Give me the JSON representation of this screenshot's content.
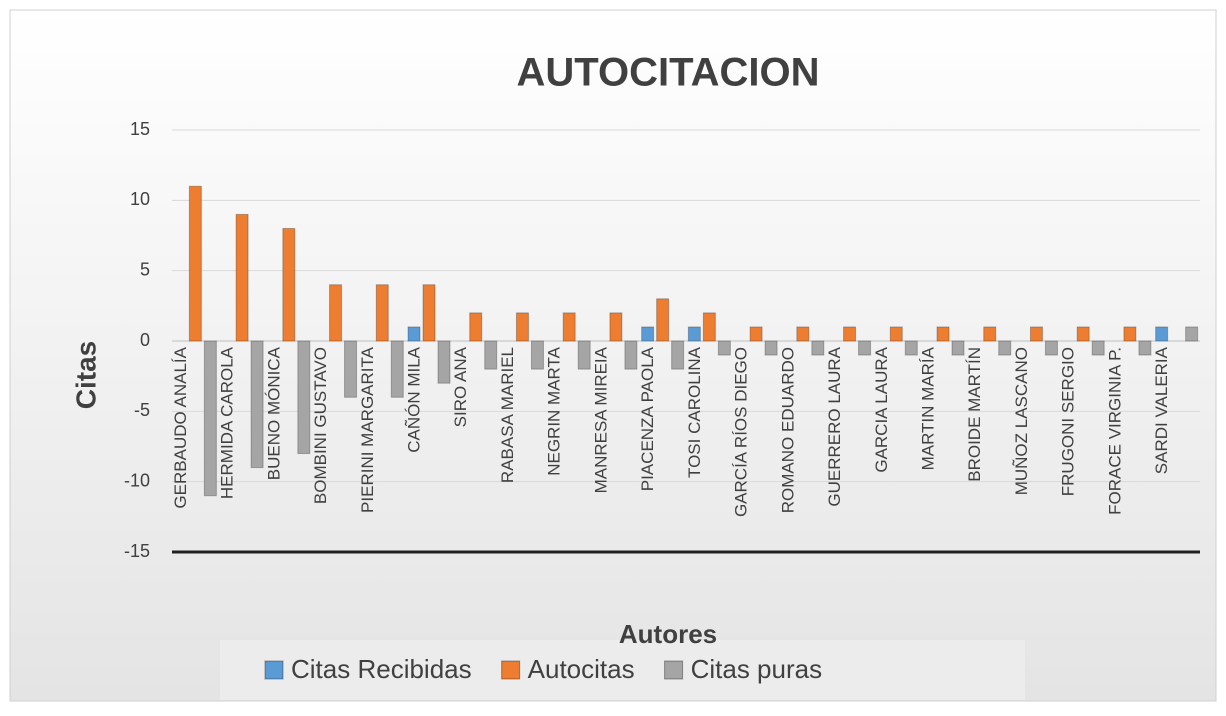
{
  "chart_data": {
    "type": "bar",
    "title": "AUTOCITACION",
    "x_label": "Autores",
    "y_label": "Citas",
    "categories": [
      "GERBAUDO ANALÍA",
      "HERMIDA CAROLA",
      "BUENO MÓNICA",
      "BOMBINI GUSTAVO",
      "PIERINI MARGARITA",
      "CAÑÓN MILA",
      "SIRO ANA",
      "RABASA MARIEL",
      "NEGRIN MARTA",
      "MANRESA MIREIA",
      "PIACENZA PAOLA",
      "TOSI CAROLINA",
      "GARCÍA RÍOS DIEGO",
      "ROMANO EDUARDO",
      "GUERRERO  LAURA",
      "GARCIA LAURA",
      "MARTIN MARÍA",
      "BROIDE MARTÍN",
      "MUÑOZ LASCANO",
      "FRUGONI SERGIO",
      "FORACE VIRGINIA P.",
      "SARDI VALERIA"
    ],
    "series": [
      {
        "name": "Citas Recibidas",
        "color": "#5b9bd5",
        "values": [
          0,
          0,
          0,
          0,
          0,
          1,
          0,
          0,
          0,
          0,
          1,
          1,
          0,
          0,
          0,
          0,
          0,
          0,
          0,
          0,
          0,
          1
        ]
      },
      {
        "name": "Autocitas",
        "color": "#ed7d31",
        "values": [
          11,
          9,
          8,
          4,
          4,
          4,
          2,
          2,
          2,
          2,
          3,
          2,
          1,
          1,
          1,
          1,
          1,
          1,
          1,
          1,
          1,
          0
        ]
      },
      {
        "name": "Citas puras",
        "color": "#a5a5a5",
        "values": [
          -11,
          -9,
          -8,
          -4,
          -4,
          -3,
          -2,
          -2,
          -2,
          -2,
          -2,
          -1,
          -1,
          -1,
          -1,
          -1,
          -1,
          -1,
          -1,
          -1,
          -1,
          1
        ]
      }
    ],
    "ylim": [
      -15,
      15
    ],
    "yticks": [
      -15,
      -10,
      -5,
      0,
      5,
      10,
      15
    ],
    "grid": true,
    "legend": "bottom"
  }
}
